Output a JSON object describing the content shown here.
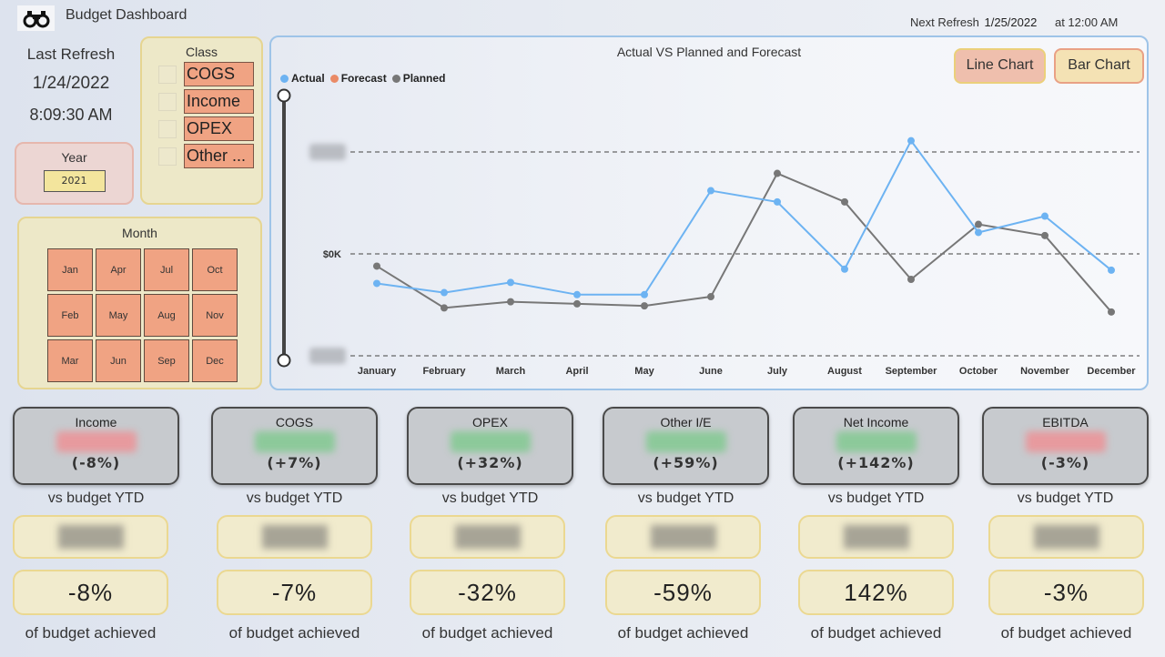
{
  "header": {
    "title": "Budget Dashboard",
    "logo_icon": "binoculars-icon",
    "next_refresh_label": "Next Refresh",
    "next_refresh_date": "1/25/2022",
    "next_refresh_time": "at 12:00 AM"
  },
  "last_refresh": {
    "label": "Last Refresh",
    "date": "1/24/2022",
    "time": "8:09:30 AM"
  },
  "year_filter": {
    "label": "Year",
    "selected": "2021"
  },
  "class_filter": {
    "label": "Class",
    "items": [
      {
        "label": "COGS",
        "checked": false
      },
      {
        "label": "Income",
        "checked": false
      },
      {
        "label": "OPEX",
        "checked": false
      },
      {
        "label": "Other ...",
        "checked": false
      }
    ]
  },
  "month_filter": {
    "label": "Month",
    "items": [
      "Jan",
      "Apr",
      "Jul",
      "Oct",
      "Feb",
      "May",
      "Aug",
      "Nov",
      "Mar",
      "Jun",
      "Sep",
      "Dec"
    ]
  },
  "chart_panel": {
    "title": "Actual VS Planned and Forecast",
    "line_chart_button": "Line Chart",
    "bar_chart_button": "Bar Chart",
    "legend": [
      {
        "label": "Actual",
        "color": "#6db3f2"
      },
      {
        "label": "Forecast",
        "color": "#ea8a66"
      },
      {
        "label": "Planned",
        "color": "#777777"
      }
    ],
    "y_tick_zero": "$0K"
  },
  "chart_data": {
    "type": "line",
    "title": "Actual VS Planned and Forecast",
    "xlabel": "",
    "ylabel": "",
    "categories": [
      "January",
      "February",
      "March",
      "April",
      "May",
      "June",
      "July",
      "August",
      "September",
      "October",
      "November",
      "December"
    ],
    "y_ticks": [
      "(obscured)",
      "$0K",
      "(obscured)"
    ],
    "y_units_note": "values relative to gridline step; upper/lower tick labels are blurred",
    "ylim": [
      -1,
      1.25
    ],
    "grid": true,
    "legend_position": "top-left",
    "series": [
      {
        "name": "Actual",
        "color": "#6db3f2",
        "values": [
          -0.29,
          -0.38,
          -0.28,
          -0.4,
          -0.4,
          0.62,
          0.51,
          -0.15,
          1.11,
          0.21,
          0.37,
          -0.16
        ]
      },
      {
        "name": "Forecast",
        "color": "#ea8a66",
        "values": []
      },
      {
        "name": "Planned",
        "color": "#777777",
        "values": [
          -0.12,
          -0.53,
          -0.47,
          -0.49,
          -0.51,
          -0.42,
          0.79,
          0.51,
          -0.25,
          0.29,
          0.18,
          -0.57
        ]
      }
    ]
  },
  "kpis": [
    {
      "name": "Income",
      "variance": "(-8%)",
      "trend_color": "#e79a9e",
      "vs_label": "vs budget YTD",
      "achieved": "-8%",
      "achieved_label": "of budget achieved"
    },
    {
      "name": "COGS",
      "variance": "(+7%)",
      "trend_color": "#8cc99a",
      "vs_label": "vs budget YTD",
      "achieved": "-7%",
      "achieved_label": "of budget achieved"
    },
    {
      "name": "OPEX",
      "variance": "(+32%)",
      "trend_color": "#8cc99a",
      "vs_label": "vs budget YTD",
      "achieved": "-32%",
      "achieved_label": "of budget achieved"
    },
    {
      "name": "Other I/E",
      "variance": "(+59%)",
      "trend_color": "#8cc99a",
      "vs_label": "vs budget YTD",
      "achieved": "-59%",
      "achieved_label": "of budget achieved"
    },
    {
      "name": "Net Income",
      "variance": "(+142%)",
      "trend_color": "#8cc99a",
      "vs_label": "vs budget YTD",
      "achieved": "142%",
      "achieved_label": "of budget achieved"
    },
    {
      "name": "EBITDA",
      "variance": "(-3%)",
      "trend_color": "#e79a9e",
      "vs_label": "vs budget YTD",
      "achieved": "-3%",
      "achieved_label": "of budget achieved"
    }
  ]
}
